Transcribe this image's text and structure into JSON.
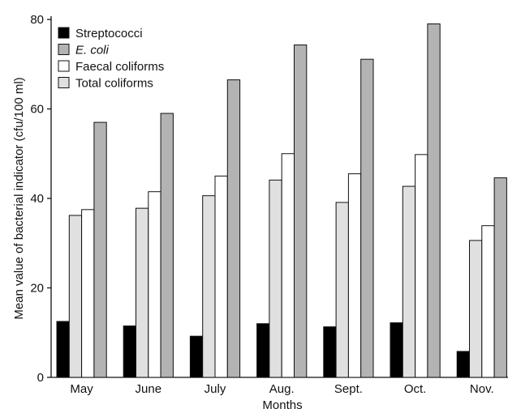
{
  "chart_data": {
    "type": "bar",
    "xlabel": "Months",
    "ylabel": "Mean value of bacterial indicator (cfu/100 ml)",
    "ylim": [
      0,
      80
    ],
    "yticks": [
      0,
      20,
      40,
      60,
      80
    ],
    "categories": [
      "May",
      "June",
      "July",
      "Aug.",
      "Sept.",
      "Oct.",
      "Nov."
    ],
    "series": [
      {
        "name": "Streptococci",
        "color": "#000000",
        "values": [
          12.5,
          11.5,
          9.2,
          12.0,
          11.3,
          12.2,
          5.8
        ]
      },
      {
        "name": "Total coliforms",
        "color": "#e0e0e0",
        "values": [
          36.2,
          37.8,
          40.6,
          44.1,
          39.1,
          42.7,
          30.6
        ]
      },
      {
        "name": "Faecal coliforms",
        "color": "#ffffff",
        "values": [
          37.5,
          41.5,
          45.0,
          50.0,
          45.5,
          49.8,
          33.9
        ]
      },
      {
        "name": "E. coli",
        "color": "#b3b3b3",
        "values": [
          57.0,
          59.0,
          66.5,
          74.3,
          71.1,
          79.0,
          44.6
        ]
      }
    ],
    "legend": {
      "placement": "top-left",
      "entries": [
        {
          "label": "Streptococci",
          "color": "#000000",
          "italic": false
        },
        {
          "label": "E. coli",
          "color": "#b3b3b3",
          "italic": true
        },
        {
          "label": "Faecal coliforms",
          "color": "#ffffff",
          "italic": false
        },
        {
          "label": "Total coliforms",
          "color": "#e0e0e0",
          "italic": false
        }
      ]
    },
    "grid": false
  }
}
